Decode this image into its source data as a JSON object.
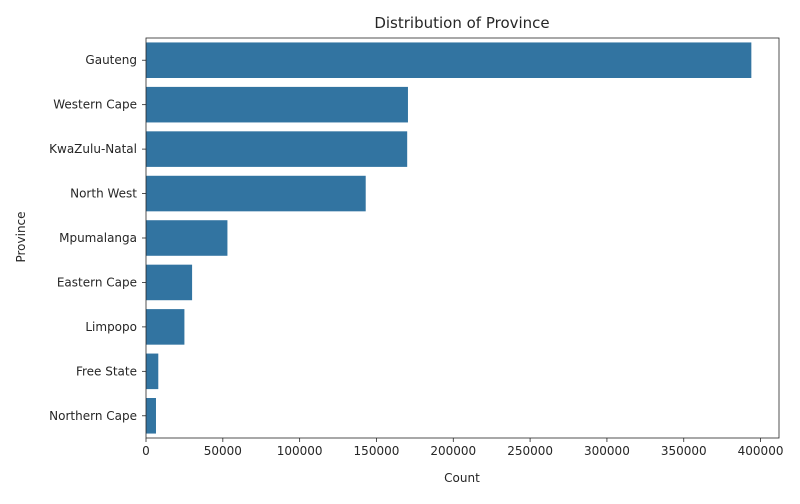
{
  "chart_data": {
    "type": "bar",
    "orientation": "horizontal",
    "title": "Distribution of Province",
    "xlabel": "Count",
    "ylabel": "Province",
    "categories": [
      "Gauteng",
      "Western Cape",
      "KwaZulu-Natal",
      "North West",
      "Mpumalanga",
      "Eastern Cape",
      "Limpopo",
      "Free State",
      "Northern Cape"
    ],
    "values": [
      394000,
      170500,
      170000,
      143000,
      53000,
      30000,
      25000,
      8000,
      6500
    ],
    "xlim": [
      0,
      412000
    ],
    "xticks": [
      0,
      50000,
      100000,
      150000,
      200000,
      250000,
      300000,
      350000,
      400000
    ],
    "xtick_labels": [
      "0",
      "50000",
      "100000",
      "150000",
      "200000",
      "250000",
      "300000",
      "350000",
      "400000"
    ],
    "grid": false,
    "legend": "none",
    "bar_color": "#3274a1"
  }
}
